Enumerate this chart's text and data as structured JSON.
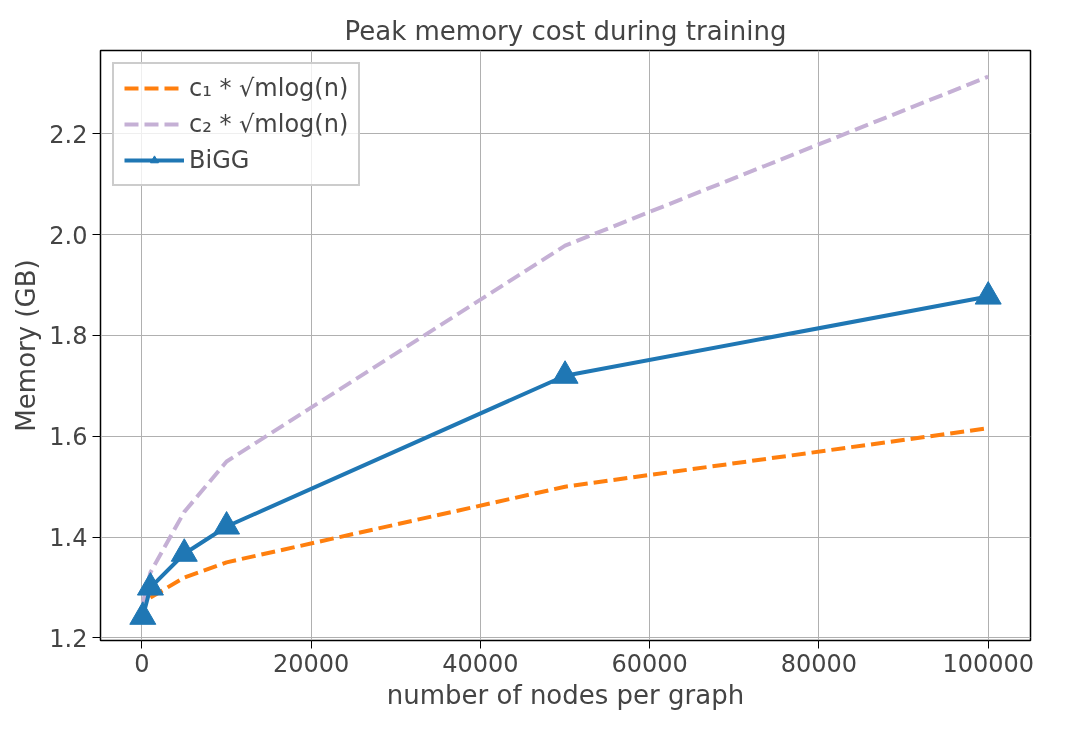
{
  "chart_data": {
    "type": "line",
    "title": "Peak memory cost during training",
    "xlabel": "number of nodes per graph",
    "ylabel": "Memory (GB)",
    "x": [
      100,
      1000,
      5000,
      10000,
      50000,
      100000
    ],
    "series": [
      {
        "name": "c₁ * √mlog(n)",
        "color": "#ff7f0e",
        "line_style": "dashed",
        "marker": "none",
        "values": [
          null,
          1.28,
          1.32,
          1.35,
          1.5,
          1.616
        ]
      },
      {
        "name": "c₂ * √mlog(n)",
        "color": "#c5b0d5",
        "line_style": "dashed",
        "marker": "none",
        "values": [
          1.27,
          1.33,
          1.45,
          1.55,
          1.978,
          2.313
        ]
      },
      {
        "name": "BiGG",
        "color": "#1f77b4",
        "line_style": "solid",
        "marker": "triangle",
        "values": [
          1.242,
          1.3,
          1.367,
          1.421,
          1.72,
          1.877
        ]
      }
    ],
    "xlim": [
      -4900,
      105000
    ],
    "ylim": [
      1.195,
      2.365
    ],
    "xticks": [
      0,
      20000,
      40000,
      60000,
      80000,
      100000
    ],
    "yticks": [
      {
        "value": 1.2,
        "label": "1.2"
      },
      {
        "value": 1.4,
        "label": "1.4"
      },
      {
        "value": 1.6,
        "label": "1.6"
      },
      {
        "value": 1.8,
        "label": "1.8"
      },
      {
        "value": 2.0,
        "label": "2.0"
      },
      {
        "value": 2.2,
        "label": "2.2"
      }
    ],
    "grid": true,
    "legend": "top left"
  }
}
